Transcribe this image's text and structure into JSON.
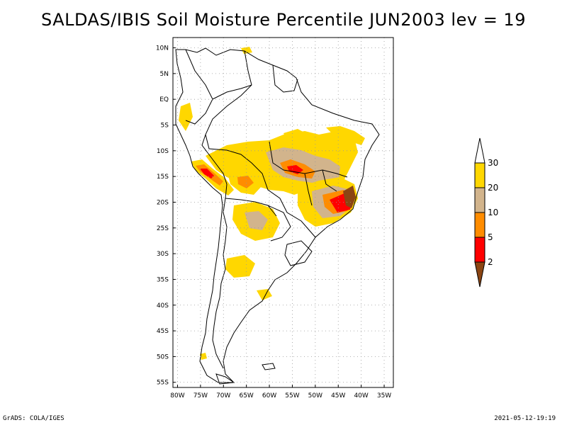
{
  "title": "SALDAS/IBIS Soil Moisture Percentile JUN2003 lev = 19",
  "footer": {
    "left": "GrADS: COLA/IGES",
    "right": "2021-05-12-19:19"
  },
  "map": {
    "lon_range": [
      -81,
      -33
    ],
    "lat_range": [
      -56,
      12
    ],
    "lat_labels": [
      {
        "value": 10,
        "text": "10N"
      },
      {
        "value": 5,
        "text": "5N"
      },
      {
        "value": 0,
        "text": "EQ"
      },
      {
        "value": -5,
        "text": "5S"
      },
      {
        "value": -10,
        "text": "10S"
      },
      {
        "value": -15,
        "text": "15S"
      },
      {
        "value": -20,
        "text": "20S"
      },
      {
        "value": -25,
        "text": "25S"
      },
      {
        "value": -30,
        "text": "30S"
      },
      {
        "value": -35,
        "text": "35S"
      },
      {
        "value": -40,
        "text": "40S"
      },
      {
        "value": -45,
        "text": "45S"
      },
      {
        "value": -50,
        "text": "50S"
      },
      {
        "value": -55,
        "text": "55S"
      }
    ],
    "lon_labels": [
      {
        "value": -80,
        "text": "80W"
      },
      {
        "value": -75,
        "text": "75W"
      },
      {
        "value": -70,
        "text": "70W"
      },
      {
        "value": -65,
        "text": "65W"
      },
      {
        "value": -60,
        "text": "60W"
      },
      {
        "value": -55,
        "text": "55W"
      },
      {
        "value": -50,
        "text": "50W"
      },
      {
        "value": -45,
        "text": "45W"
      },
      {
        "value": -40,
        "text": "40W"
      },
      {
        "value": -35,
        "text": "35W"
      }
    ]
  },
  "legend": {
    "levels": [
      "2",
      "5",
      "10",
      "20",
      "30"
    ],
    "colors": {
      "below_2": "#8b4513",
      "2_5": "#ff0000",
      "5_10": "#ff8c00",
      "10_20": "#d2b48c",
      "20_30": "#ffd700",
      "above_30": "#ffffff"
    }
  }
}
